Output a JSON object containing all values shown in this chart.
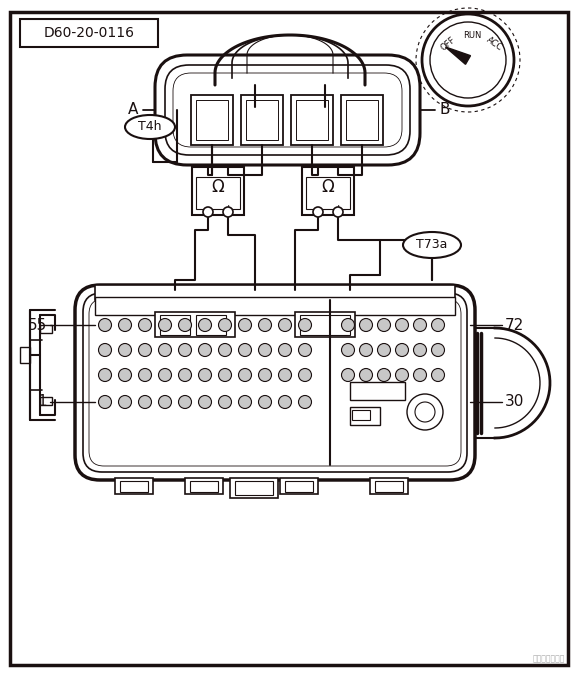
{
  "line_color": "#1a1010",
  "label_D60": "D60-20-0116",
  "label_T4h": "T4h",
  "label_T73a": "T73a",
  "label_A": "A",
  "label_B": "B",
  "label_55": "55",
  "label_72": "72",
  "label_1": "1",
  "label_30": "30",
  "omega_symbol": "Ω",
  "fig_width": 5.8,
  "fig_height": 6.75,
  "border_lw": 2.5
}
